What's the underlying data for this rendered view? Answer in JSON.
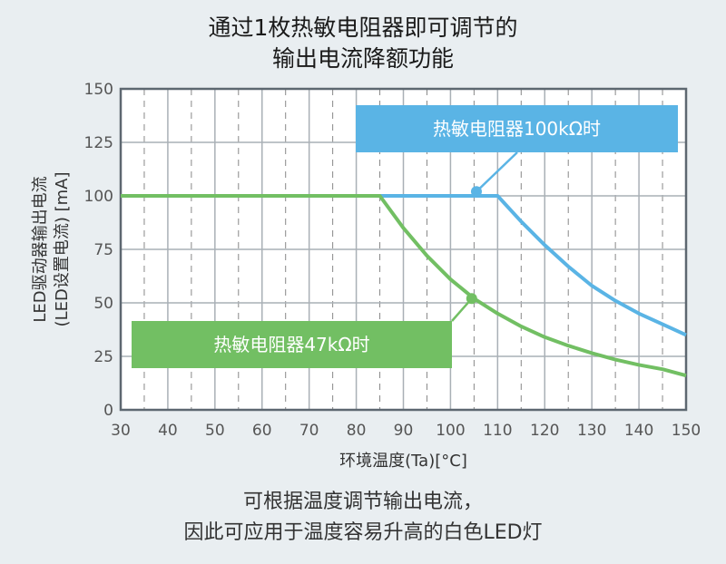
{
  "title_lines": [
    "通过1枚热敏电阻器即可调节的",
    "输出电流降额功能"
  ],
  "footer_lines": [
    "可根据温度调节输出电流，",
    "因此可应用于温度容易升高的白色LED灯"
  ],
  "chart_data": {
    "type": "line",
    "title": "通过1枚热敏电阻器即可调节的输出电流降额功能",
    "xlabel": "环境温度(Ta)[°C]",
    "ylabel_lines": [
      "LED驱动器输出电流",
      "(LED设置电流) [mA]"
    ],
    "xlim": [
      30,
      150
    ],
    "ylim": [
      0,
      150
    ],
    "xticks": [
      30,
      40,
      50,
      60,
      70,
      80,
      90,
      100,
      110,
      120,
      130,
      140,
      150
    ],
    "yticks": [
      0,
      25,
      50,
      75,
      100,
      125,
      150
    ],
    "grid": true,
    "series": [
      {
        "name": "热敏电阻器47kΩ时",
        "color": "#72bf63",
        "x": [
          30,
          85,
          90,
          95,
          100,
          105,
          110,
          115,
          120,
          125,
          130,
          135,
          140,
          145,
          150
        ],
        "y": [
          100,
          100,
          85,
          72,
          61,
          52,
          45,
          39,
          34,
          30,
          26.5,
          23.5,
          21,
          19,
          16
        ]
      },
      {
        "name": "热敏电阻器100kΩ时",
        "color": "#5ab4e5",
        "x": [
          85,
          110,
          115,
          120,
          125,
          130,
          135,
          140,
          145,
          150
        ],
        "y": [
          100,
          100,
          88,
          77,
          67,
          58,
          51,
          45,
          40,
          35
        ]
      }
    ],
    "annotations": [
      {
        "text": "热敏电阻器100kΩ时",
        "series": 1,
        "color": "#5ab4e5",
        "point": [
          105.5,
          102
        ]
      },
      {
        "text": "热敏电阻器47kΩ时",
        "series": 0,
        "color": "#72bf63",
        "point": [
          104.5,
          52
        ]
      }
    ]
  }
}
